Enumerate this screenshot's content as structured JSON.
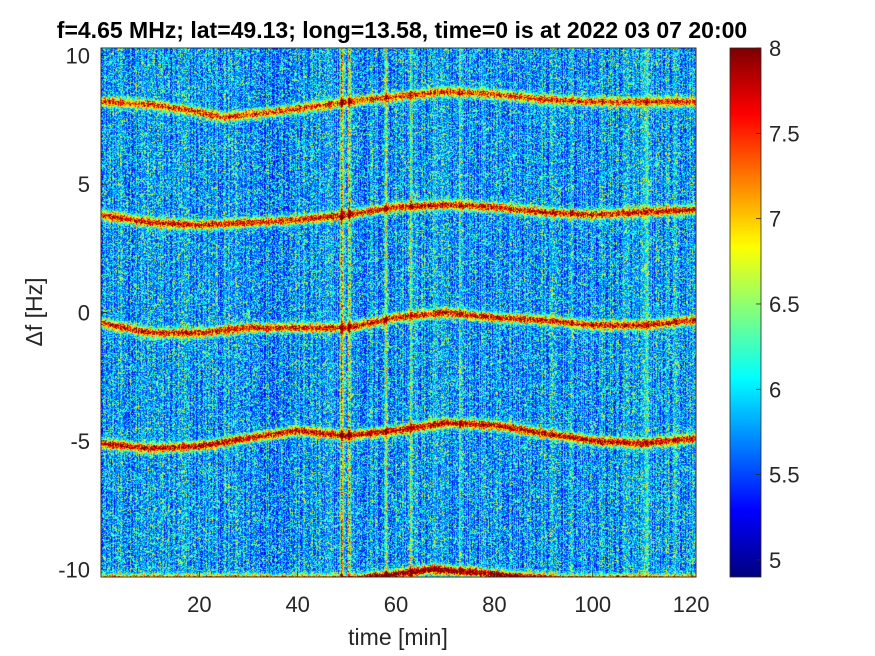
{
  "chart_data": {
    "type": "heatmap",
    "title": "f=4.65 MHz;  lat=49.13; long=13.58, time=0 is at 2022 03 07 20:00",
    "xlabel": "time [min]",
    "ylabel": "Δf [Hz]",
    "xlim": [
      0,
      121
    ],
    "ylim": [
      -10.3,
      10.3
    ],
    "xticks": [
      20,
      40,
      60,
      80,
      100,
      120
    ],
    "yticks": [
      -10,
      -5,
      0,
      5,
      10
    ],
    "colorbar": {
      "colormap": "jet",
      "clim": [
        4.9,
        8
      ],
      "ticks": [
        5,
        5.5,
        6,
        6.5,
        7,
        7.5,
        8
      ]
    },
    "ridges": [
      {
        "x": [
          0,
          10,
          20,
          25,
          35,
          50,
          60,
          70,
          80,
          90,
          100,
          110,
          121
        ],
        "y": [
          8.2,
          8.1,
          7.8,
          7.6,
          7.8,
          8.2,
          8.4,
          8.6,
          8.5,
          8.3,
          8.2,
          8.2,
          8.2
        ]
      },
      {
        "x": [
          0,
          10,
          20,
          30,
          40,
          50,
          60,
          70,
          80,
          90,
          100,
          110,
          121
        ],
        "y": [
          3.8,
          3.5,
          3.4,
          3.5,
          3.6,
          3.8,
          4.1,
          4.2,
          4.1,
          3.9,
          3.8,
          3.9,
          4.0
        ]
      },
      {
        "x": [
          0,
          10,
          20,
          30,
          40,
          50,
          60,
          70,
          80,
          90,
          100,
          110,
          121
        ],
        "y": [
          -0.4,
          -0.8,
          -0.8,
          -0.6,
          -0.6,
          -0.6,
          -0.2,
          0.0,
          -0.2,
          -0.3,
          -0.5,
          -0.5,
          -0.3
        ]
      },
      {
        "x": [
          0,
          10,
          20,
          30,
          40,
          50,
          60,
          70,
          80,
          90,
          100,
          110,
          121
        ],
        "y": [
          -5.1,
          -5.3,
          -5.2,
          -4.9,
          -4.6,
          -4.8,
          -4.6,
          -4.3,
          -4.4,
          -4.7,
          -5.0,
          -5.1,
          -4.9
        ]
      },
      {
        "x": [
          0,
          50,
          55,
          60,
          67,
          75,
          85,
          95,
          121
        ],
        "y": [
          -10.4,
          -10.4,
          -10.3,
          -10.2,
          -10.0,
          -10.1,
          -10.3,
          -10.4,
          -10.4
        ]
      }
    ],
    "ridge_strength": [
      0.55,
      0.6,
      0.6,
      0.65,
      0.75
    ],
    "vertical_streaks": [
      {
        "x": 49,
        "strength": 0.55
      },
      {
        "x": 50.5,
        "strength": 0.45
      },
      {
        "x": 58,
        "strength": 0.25
      },
      {
        "x": 63,
        "strength": 0.22
      },
      {
        "x": 73,
        "strength": 0.2
      },
      {
        "x": 111,
        "strength": 0.18
      }
    ]
  }
}
